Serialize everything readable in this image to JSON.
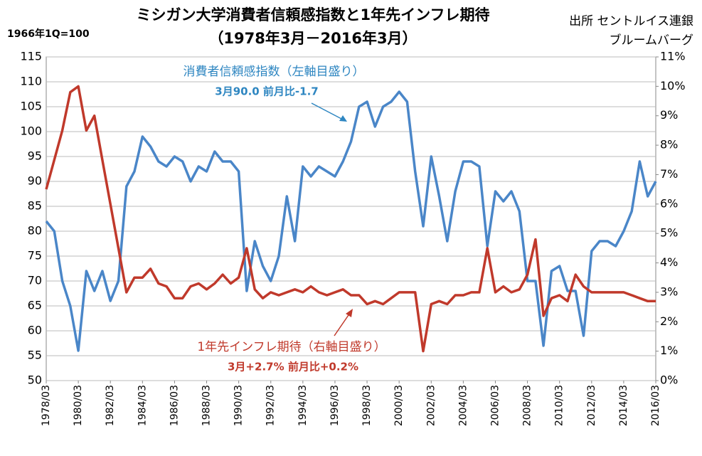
{
  "chart_data": {
    "type": "line",
    "title": "ミシガン大学消費者信頼感指数と1年先インフレ期待",
    "subtitle": "（1978年3月－2016年3月）",
    "y_axis_label": "1966年1Q=100",
    "source": [
      "出所 セントルイス連銀",
      "ブルームバーグ"
    ],
    "annotations": [
      {
        "text": "消費者信頼感指数（左軸目盛り）",
        "detail": "3月90.0  前月比-1.7"
      },
      {
        "text": "1年先インフレ期待（右軸目盛り）",
        "detail": "3月+2.7%  前月比+0.2%"
      }
    ],
    "categories": [
      "1978/03",
      null,
      null,
      null,
      "1980/03",
      null,
      null,
      null,
      "1982/03",
      null,
      null,
      null,
      "1984/03",
      null,
      null,
      null,
      "1986/03",
      null,
      null,
      null,
      "1988/03",
      null,
      null,
      null,
      "1990/03",
      null,
      null,
      null,
      "1992/03",
      null,
      null,
      null,
      "1994/03",
      null,
      null,
      null,
      "1996/03",
      null,
      null,
      null,
      "1998/03",
      null,
      null,
      null,
      "2000/03",
      null,
      null,
      null,
      "2002/03",
      null,
      null,
      null,
      "2004/03",
      null,
      null,
      null,
      "2006/03",
      null,
      null,
      null,
      "2008/03",
      null,
      null,
      null,
      "2010/03",
      null,
      null,
      null,
      "2012/03",
      null,
      null,
      null,
      "2014/03",
      null,
      null,
      null,
      "2016/03"
    ],
    "series": [
      {
        "name": "消費者信頼感指数",
        "color": "#4a86c8",
        "axis": "y",
        "values": [
          82,
          80,
          70,
          65,
          56,
          72,
          68,
          72,
          66,
          70,
          89,
          92,
          99,
          97,
          94,
          93,
          95,
          94,
          90,
          93,
          92,
          96,
          94,
          94,
          92,
          68,
          78,
          73,
          70,
          75,
          87,
          78,
          93,
          91,
          93,
          92,
          91,
          94,
          98,
          105,
          106,
          101,
          105,
          106,
          108,
          106,
          92,
          81,
          95,
          87,
          78,
          88,
          94,
          94,
          93,
          77,
          88,
          86,
          88,
          84,
          70,
          70,
          57,
          72,
          73,
          68,
          68,
          59,
          76,
          78,
          78,
          77,
          80,
          84,
          94,
          87,
          90
        ]
      },
      {
        "name": "1年先インフレ期待",
        "color": "#c0392b",
        "axis": "y2",
        "values": [
          6.5,
          7.5,
          8.5,
          9.8,
          10.0,
          8.5,
          9.0,
          7.5,
          6.0,
          4.5,
          3.0,
          3.5,
          3.5,
          3.8,
          3.3,
          3.2,
          2.8,
          2.8,
          3.2,
          3.3,
          3.1,
          3.3,
          3.6,
          3.3,
          3.5,
          4.5,
          3.1,
          2.8,
          3.0,
          2.9,
          3.0,
          3.1,
          3.0,
          3.2,
          3.0,
          2.9,
          3.0,
          3.1,
          2.9,
          2.9,
          2.6,
          2.7,
          2.6,
          2.8,
          3.0,
          3.0,
          3.0,
          1.0,
          2.6,
          2.7,
          2.6,
          2.9,
          2.9,
          3.0,
          3.0,
          4.5,
          3.0,
          3.2,
          3.0,
          3.1,
          3.6,
          4.8,
          2.2,
          2.8,
          2.9,
          2.7,
          3.6,
          3.2,
          3.0,
          3.0,
          3.0,
          3.0,
          3.0,
          2.9,
          2.8,
          2.7,
          2.7
        ]
      }
    ],
    "ylim": [
      50,
      115
    ],
    "yticks": [
      50,
      55,
      60,
      65,
      70,
      75,
      80,
      85,
      90,
      95,
      100,
      105,
      110,
      115
    ],
    "y2lim": [
      0,
      11
    ],
    "y2ticks": [
      {
        "value": 0,
        "label": "0%"
      },
      {
        "value": 1,
        "label": "1%"
      },
      {
        "value": 2,
        "label": "2%"
      },
      {
        "value": 3,
        "label": "3%"
      },
      {
        "value": 4,
        "label": "4%"
      },
      {
        "value": 5,
        "label": "5%"
      },
      {
        "value": 6,
        "label": "6%"
      },
      {
        "value": 7,
        "label": "7%"
      },
      {
        "value": 8,
        "label": "8%"
      },
      {
        "value": 9,
        "label": "9%"
      },
      {
        "value": 10,
        "label": "10%"
      },
      {
        "value": 11,
        "label": "11%"
      }
    ],
    "grid": true
  }
}
